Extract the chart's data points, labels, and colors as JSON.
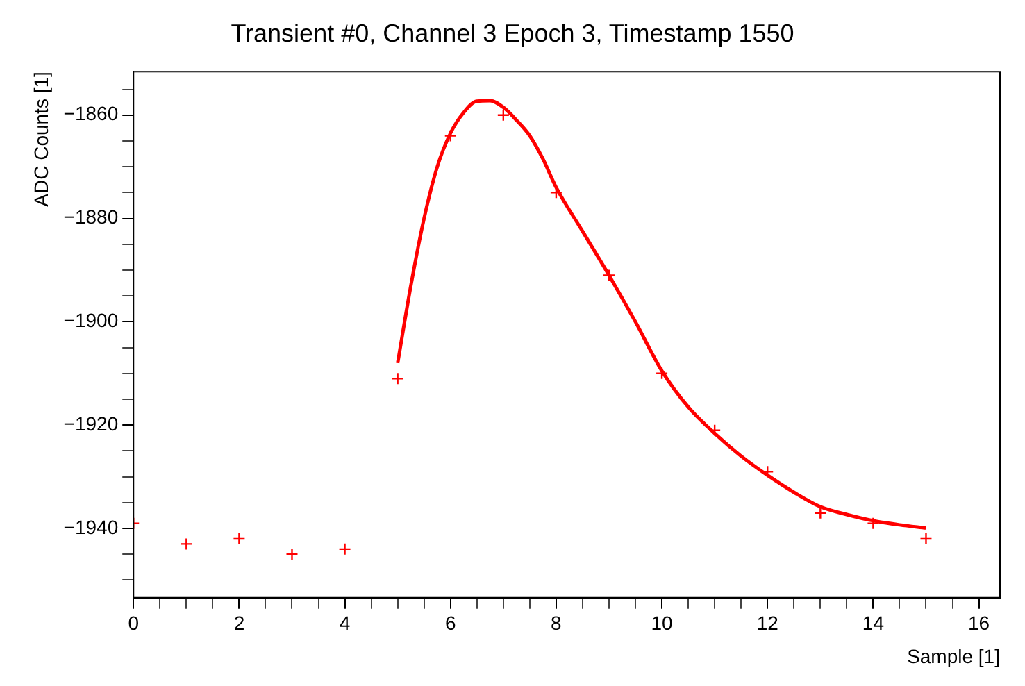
{
  "chart_data": {
    "type": "scatter",
    "title": "Transient #0, Channel 3 Epoch 3, Timestamp 1550",
    "xlabel": "Sample [1]",
    "ylabel": "ADC Counts [1]",
    "series": [
      {
        "color": "#ff0000",
        "marker": "cross",
        "x": [
          0,
          1,
          2,
          3,
          4,
          5,
          6,
          7,
          8,
          9,
          10,
          11,
          12,
          13,
          14,
          15
        ],
        "values": [
          -1939,
          -1943,
          -1942,
          -1945,
          -1944,
          -1911,
          -1864,
          -1860,
          -1875,
          -1891,
          -1910,
          -1921,
          -1929,
          -1937,
          -1939,
          -1942
        ]
      },
      {
        "type": "line",
        "color": "#ff0000",
        "marker": "none",
        "x": [
          5,
          5.25,
          5.5,
          5.75,
          6,
          6.25,
          6.5,
          6.75,
          7,
          7.25,
          7.5,
          7.75,
          8,
          8.5,
          9,
          9.5,
          10,
          10.5,
          11,
          11.5,
          12,
          12.5,
          13,
          13.5,
          14,
          14.5,
          15
        ],
        "values": [
          -1908,
          -1893,
          -1880,
          -1870,
          -1863.5,
          -1859.5,
          -1857.3,
          -1857.2,
          -1858.5,
          -1861,
          -1864,
          -1868.5,
          -1874,
          -1882.5,
          -1891,
          -1900,
          -1909.5,
          -1916.5,
          -1921.6,
          -1926,
          -1929.7,
          -1933,
          -1935.8,
          -1937.3,
          -1938.5,
          -1939.3,
          -1939.9
        ]
      }
    ],
    "xlim": [
      0,
      16.4
    ],
    "ylim": [
      -1953.4,
      -1851.6
    ],
    "xticks": [
      0,
      {
        "value": 0.5,
        "label": null
      },
      {
        "value": 1,
        "label": null
      },
      {
        "value": 1.5,
        "label": null
      },
      2,
      {
        "value": 2.5,
        "label": null
      },
      {
        "value": 3,
        "label": null
      },
      {
        "value": 3.5,
        "label": null
      },
      4,
      {
        "value": 4.5,
        "label": null
      },
      {
        "value": 5,
        "label": null
      },
      {
        "value": 5.5,
        "label": null
      },
      6,
      {
        "value": 6.5,
        "label": null
      },
      {
        "value": 7,
        "label": null
      },
      {
        "value": 7.5,
        "label": null
      },
      8,
      {
        "value": 8.5,
        "label": null
      },
      {
        "value": 9,
        "label": null
      },
      {
        "value": 9.5,
        "label": null
      },
      10,
      {
        "value": 10.5,
        "label": null
      },
      {
        "value": 11,
        "label": null
      },
      {
        "value": 11.5,
        "label": null
      },
      12,
      {
        "value": 12.5,
        "label": null
      },
      {
        "value": 13,
        "label": null
      },
      {
        "value": 13.5,
        "label": null
      },
      14,
      {
        "value": 14.5,
        "label": null
      },
      {
        "value": 15,
        "label": null
      },
      {
        "value": 15.5,
        "label": null
      },
      16
    ],
    "yticks": [
      {
        "value": -1950,
        "label": null
      },
      {
        "value": -1945,
        "label": null
      },
      -1940,
      {
        "value": -1935,
        "label": null
      },
      {
        "value": -1930,
        "label": null
      },
      {
        "value": -1925,
        "label": null
      },
      -1920,
      {
        "value": -1915,
        "label": null
      },
      {
        "value": -1910,
        "label": null
      },
      {
        "value": -1905,
        "label": null
      },
      -1900,
      {
        "value": -1895,
        "label": null
      },
      {
        "value": -1890,
        "label": null
      },
      {
        "value": -1885,
        "label": null
      },
      -1880,
      {
        "value": -1875,
        "label": null
      },
      {
        "value": -1870,
        "label": null
      },
      {
        "value": -1865,
        "label": null
      },
      -1860,
      {
        "value": -1855,
        "label": null
      }
    ],
    "grid": false,
    "legend": false
  }
}
